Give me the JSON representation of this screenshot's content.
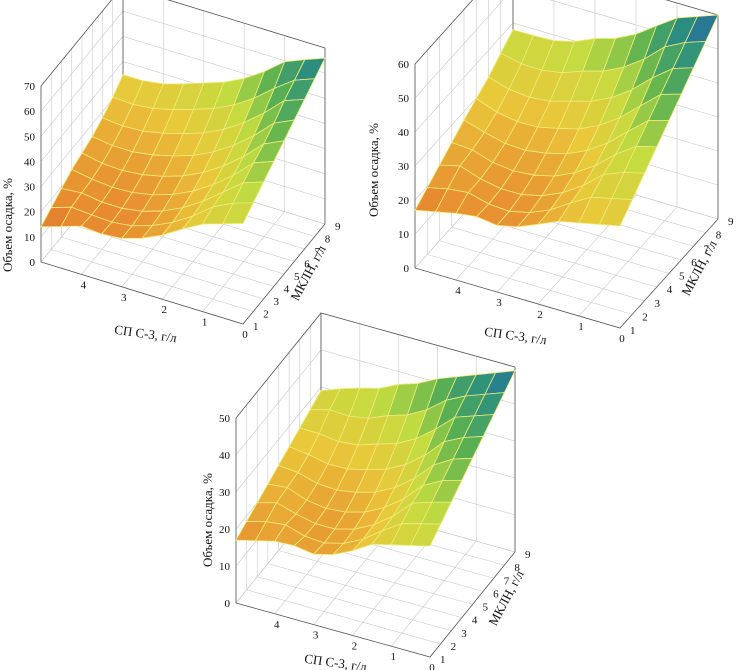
{
  "chart_data": [
    {
      "type": "surface",
      "name": "plot-top-left",
      "xlabel": "СП С-3, г/л",
      "ylabel": "МКЛН, г/л",
      "zlabel": "Объем осадка, %",
      "xlim": [
        0,
        5
      ],
      "ylim": [
        1,
        9
      ],
      "zlim": [
        0,
        70
      ],
      "x_ticks": [
        "0",
        "1",
        "2",
        "3",
        "4"
      ],
      "y_ticks": [
        "1",
        "2",
        "3",
        "4",
        "5",
        "6",
        "7",
        "8",
        "9"
      ],
      "z_ticks": [
        "0",
        "10",
        "20",
        "30",
        "40",
        "50",
        "60",
        "70"
      ],
      "surface": {
        "z_at_x0_y1": 40,
        "z_at_x5_y1": 14,
        "z_at_x0_y9": 66,
        "z_at_x5_y9": 35,
        "z_min": 6,
        "min_at_x": 3.2,
        "min_at_y": 3.5
      }
    },
    {
      "type": "surface",
      "name": "plot-top-right",
      "xlabel": "СП С-3, г/л",
      "ylabel": "МКЛН, г/л",
      "zlabel": "Объем осадка, %",
      "xlim": [
        0,
        5
      ],
      "ylim": [
        1,
        9
      ],
      "zlim": [
        0,
        60
      ],
      "x_ticks": [
        "0",
        "1",
        "2",
        "3",
        "4"
      ],
      "y_ticks": [
        "1",
        "2",
        "3",
        "4",
        "5",
        "6",
        "7",
        "8",
        "9"
      ],
      "z_ticks": [
        "0",
        "10",
        "20",
        "30",
        "40",
        "50",
        "60"
      ],
      "surface": {
        "z_at_x0_y1": 30,
        "z_at_x5_y1": 17,
        "z_at_x0_y9": 60,
        "z_at_x5_y9": 38,
        "z_min": 9,
        "min_at_x": 3.0,
        "min_at_y": 3.5
      }
    },
    {
      "type": "surface",
      "name": "plot-bottom",
      "xlabel": "СП С-3, г/л",
      "ylabel": "МКЛН, г/л",
      "zlabel": "Объем осадка, %",
      "xlim": [
        0,
        5
      ],
      "ylim": [
        1,
        9
      ],
      "zlim": [
        0,
        50
      ],
      "x_ticks": [
        "0",
        "1",
        "2",
        "3",
        "4"
      ],
      "y_ticks": [
        "1",
        "2",
        "3",
        "4",
        "5",
        "6",
        "7",
        "8",
        "9"
      ],
      "z_ticks": [
        "0",
        "10",
        "20",
        "30",
        "40",
        "50"
      ],
      "surface": {
        "z_at_x0_y1": 30,
        "z_at_x5_y1": 17,
        "z_at_x0_y9": 49,
        "z_at_x5_y9": 29,
        "z_min": 8,
        "min_at_x": 3.0,
        "min_at_y": 3.5
      }
    }
  ]
}
